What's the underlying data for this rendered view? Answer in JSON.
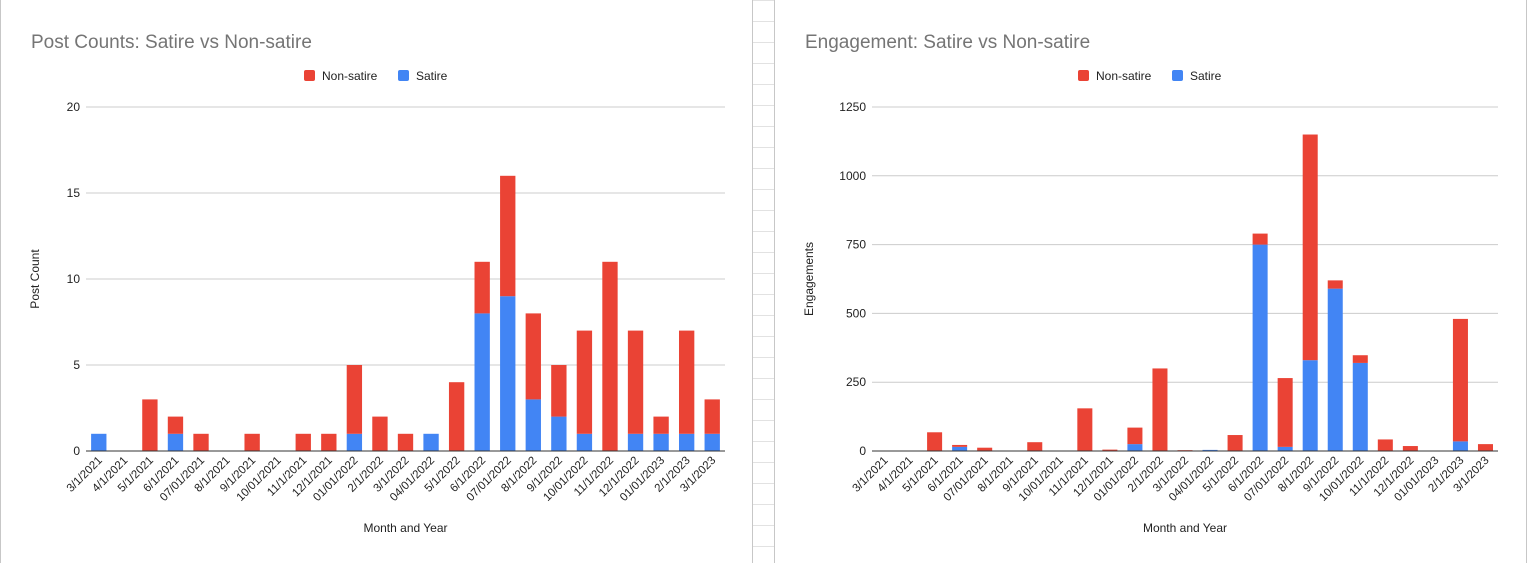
{
  "colors": {
    "non_satire": "#ea4335",
    "satire": "#4285f4"
  },
  "chart_data": [
    {
      "type": "bar",
      "stacked": true,
      "title": "Post Counts: Satire vs Non-satire",
      "xlabel": "Month and Year",
      "ylabel": "Post Count",
      "ylim": [
        0,
        20
      ],
      "yticks": [
        0,
        5,
        10,
        15,
        20
      ],
      "grid": true,
      "legend_position": "top-center",
      "categories": [
        "3/1/2021",
        "4/1/2021",
        "5/1/2021",
        "6/1/2021",
        "07/01/2021",
        "8/1/2021",
        "9/1/2021",
        "10/01/2021",
        "11/1/2021",
        "12/1/2021",
        "01/01/2022",
        "2/1/2022",
        "3/1/2022",
        "04/01/2022",
        "5/1/2022",
        "6/1/2022",
        "07/01/2022",
        "8/1/2022",
        "9/1/2022",
        "10/01/2022",
        "11/1/2022",
        "12/1/2022",
        "01/01/2023",
        "2/1/2023",
        "3/1/2023"
      ],
      "series": [
        {
          "name": "Satire",
          "color": "#4285f4",
          "values": [
            1,
            0,
            0,
            1,
            0,
            0,
            0,
            0,
            0,
            0,
            1,
            0,
            0,
            1,
            0,
            8,
            9,
            3,
            2,
            1,
            0,
            1,
            1,
            1,
            1
          ]
        },
        {
          "name": "Non-satire",
          "color": "#ea4335",
          "values": [
            0,
            0,
            3,
            1,
            1,
            0,
            1,
            0,
            1,
            1,
            4,
            2,
            1,
            0,
            4,
            3,
            7,
            5,
            3,
            6,
            11,
            6,
            1,
            6,
            2
          ]
        }
      ]
    },
    {
      "type": "bar",
      "stacked": true,
      "title": "Engagement: Satire vs Non-satire",
      "xlabel": "Month and Year",
      "ylabel": "Engagements",
      "ylim": [
        0,
        1250
      ],
      "yticks": [
        0,
        250,
        500,
        750,
        1000,
        1250
      ],
      "grid": true,
      "legend_position": "top-center",
      "categories": [
        "3/1/2021",
        "4/1/2021",
        "5/1/2021",
        "6/1/2021",
        "07/01/2021",
        "8/1/2021",
        "9/1/2021",
        "10/01/2021",
        "11/1/2021",
        "12/1/2021",
        "01/01/2022",
        "2/1/2022",
        "3/1/2022",
        "04/01/2022",
        "5/1/2022",
        "6/1/2022",
        "07/01/2022",
        "8/1/2022",
        "9/1/2022",
        "10/01/2022",
        "11/1/2022",
        "12/1/2022",
        "01/01/2023",
        "2/1/2023",
        "3/1/2023"
      ],
      "series": [
        {
          "name": "Satire",
          "color": "#4285f4",
          "values": [
            1,
            0,
            0,
            15,
            0,
            0,
            0,
            0,
            0,
            0,
            25,
            0,
            0,
            4,
            0,
            750,
            15,
            330,
            590,
            320,
            0,
            0,
            0,
            35,
            0
          ]
        },
        {
          "name": "Non-satire",
          "color": "#ea4335",
          "values": [
            0,
            0,
            68,
            7,
            12,
            0,
            32,
            0,
            155,
            5,
            60,
            300,
            3,
            0,
            58,
            40,
            250,
            820,
            30,
            28,
            42,
            18,
            0,
            445,
            25
          ]
        }
      ]
    }
  ]
}
